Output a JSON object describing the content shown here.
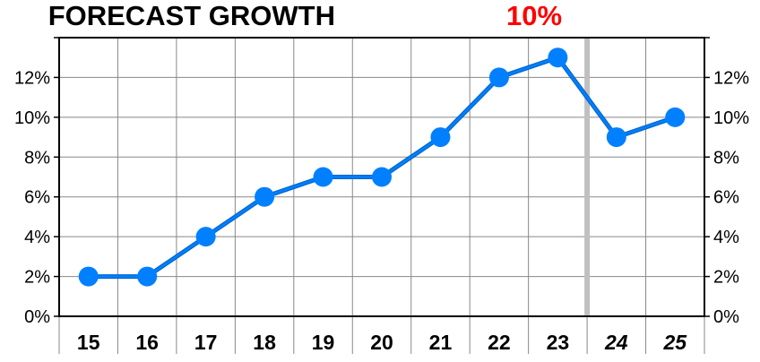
{
  "title": {
    "main": "FORECAST GROWTH",
    "accent": "10%",
    "accent_color": "#ff0000"
  },
  "chart_data": {
    "type": "line",
    "categories": [
      "15",
      "16",
      "17",
      "18",
      "19",
      "20",
      "21",
      "22",
      "23",
      "24",
      "25"
    ],
    "forecast_categories": [
      "24",
      "25"
    ],
    "series": [
      {
        "values": [
          2,
          2,
          4,
          6,
          7,
          7,
          9,
          12,
          13,
          9,
          10
        ],
        "color": "#0080ff"
      }
    ],
    "ylim": [
      0,
      14
    ],
    "yticks": [
      0,
      2,
      4,
      6,
      8,
      10,
      12
    ],
    "ytick_labels": [
      "0%",
      "2%",
      "4%",
      "6%",
      "8%",
      "10%",
      "12%"
    ],
    "y_axis_both_sides": true,
    "grid": true,
    "forecast_divider_color": "#c0c0c0",
    "line_color": "#0066cc",
    "marker_color": "#0080ff"
  }
}
